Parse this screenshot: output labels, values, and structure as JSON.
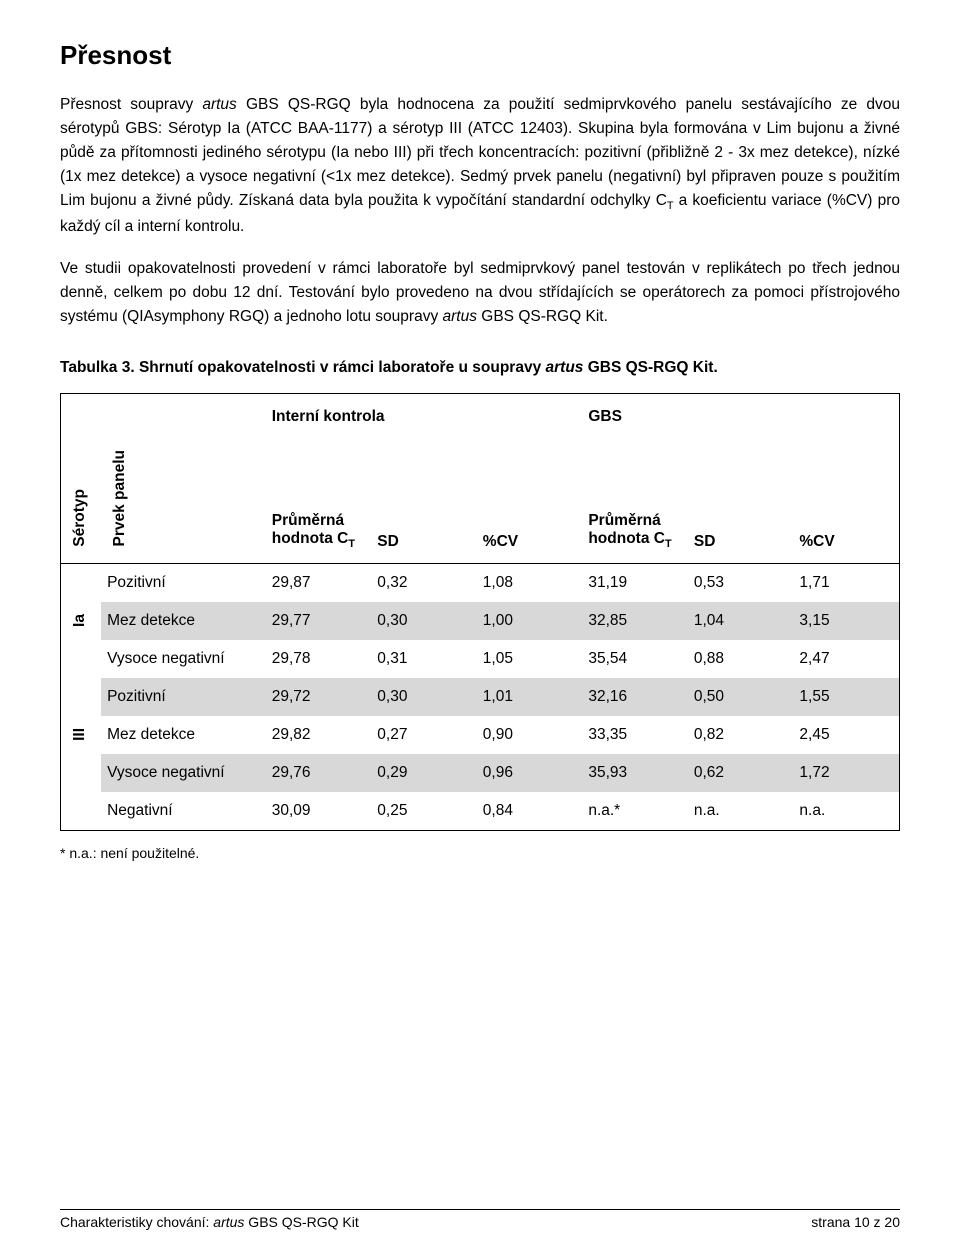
{
  "title": "Přesnost",
  "paragraphs": {
    "p1_a": "Přesnost soupravy ",
    "p1_b_italic": "artus",
    "p1_c": " GBS QS-RGQ byla hodnocena za použití sedmiprvkového panelu sestávajícího ze dvou sérotypů GBS: Sérotyp Ia (ATCC BAA-1177) a sérotyp III (ATCC 12403). Skupina byla formována v Lim bujonu a živné půdě za přítomnosti jediného sérotypu (Ia nebo III) při třech koncentracích: pozitivní (přibližně 2 - 3x mez detekce), nízké (1x mez detekce) a vysoce negativní (<1x mez detekce). Sedmý prvek panelu (negativní) byl připraven pouze s použitím Lim bujonu a živné půdy. Získaná data byla použita k vypočítání standardní odchylky C",
    "p1_sub": "T",
    "p1_d": " a koeficientu variace (%CV) pro každý cíl a interní kontrolu.",
    "p2_a": "Ve studii opakovatelnosti provedení v rámci laboratoře byl sedmiprvkový panel testován v replikátech po třech jednou denně, celkem po dobu 12 dní. Testování bylo provedeno na dvou střídajících se operátorech za pomoci přístrojového systému (QIAsymphony RGQ) a jednoho lotu soupravy ",
    "p2_b_italic": "artus",
    "p2_c": " GBS QS-RGQ Kit."
  },
  "table_caption_a": "Tabulka 3. Shrnutí opakovatelnosti v rámci laboratoře u soupravy ",
  "table_caption_italic": "artus",
  "table_caption_b": " GBS QS-RGQ Kit.",
  "table": {
    "group_headers": {
      "ic": "Interní kontrola",
      "gbs": "GBS"
    },
    "col_headers": {
      "serotype": "Sérotyp",
      "panel": "Prvek panelu",
      "mean_ct_a": "Průměrná hodnota C",
      "mean_ct_sub": "T",
      "sd": "SD",
      "cv": "%CV"
    },
    "serotype_labels": {
      "ia": "Ia",
      "iii": "III"
    },
    "row_labels": {
      "positive": "Pozitivní",
      "lod": "Mez detekce",
      "highneg": "Vysoce negativní",
      "negative": "Negativní"
    },
    "rows": [
      {
        "ic_ct": "29,87",
        "ic_sd": "0,32",
        "ic_cv": "1,08",
        "gbs_ct": "31,19",
        "gbs_sd": "0,53",
        "gbs_cv": "1,71"
      },
      {
        "ic_ct": "29,77",
        "ic_sd": "0,30",
        "ic_cv": "1,00",
        "gbs_ct": "32,85",
        "gbs_sd": "1,04",
        "gbs_cv": "3,15"
      },
      {
        "ic_ct": "29,78",
        "ic_sd": "0,31",
        "ic_cv": "1,05",
        "gbs_ct": "35,54",
        "gbs_sd": "0,88",
        "gbs_cv": "2,47"
      },
      {
        "ic_ct": "29,72",
        "ic_sd": "0,30",
        "ic_cv": "1,01",
        "gbs_ct": "32,16",
        "gbs_sd": "0,50",
        "gbs_cv": "1,55"
      },
      {
        "ic_ct": "29,82",
        "ic_sd": "0,27",
        "ic_cv": "0,90",
        "gbs_ct": "33,35",
        "gbs_sd": "0,82",
        "gbs_cv": "2,45"
      },
      {
        "ic_ct": "29,76",
        "ic_sd": "0,29",
        "ic_cv": "0,96",
        "gbs_ct": "35,93",
        "gbs_sd": "0,62",
        "gbs_cv": "1,72"
      },
      {
        "ic_ct": "30,09",
        "ic_sd": "0,25",
        "ic_cv": "0,84",
        "gbs_ct": "n.a.*",
        "gbs_sd": "n.a.",
        "gbs_cv": "n.a."
      }
    ]
  },
  "footnote": "*  n.a.: není použitelné.",
  "footer": {
    "left_a": "Charakteristiky chování: ",
    "left_italic": "artus",
    "left_b": " GBS QS-RGQ Kit",
    "right": "strana 10 z 20"
  },
  "colors": {
    "text": "#000000",
    "background": "#ffffff",
    "row_shade": "#d8d8d8",
    "borders": "#000000"
  }
}
